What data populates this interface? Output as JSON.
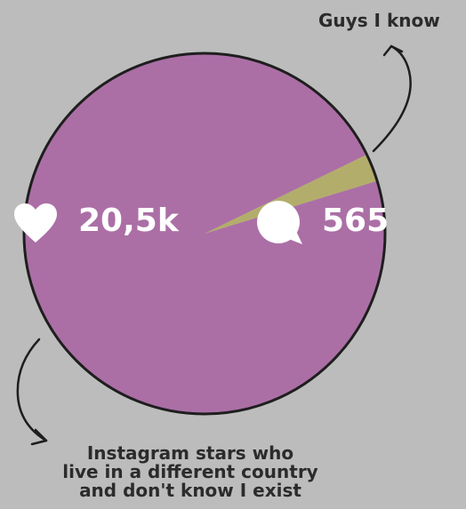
{
  "chart_data": {
    "type": "pie",
    "slices": [
      {
        "label": "Instagram stars who live in a different country and don't know I exist",
        "value": 97.5,
        "color": "#ab6fa6"
      },
      {
        "label": "Guys I know",
        "value": 2.5,
        "color": "#b3ad6c"
      }
    ],
    "annotations": {
      "small_slice": "Guys I know",
      "large_slice_lines": [
        "Instagram stars who",
        "live in a different country",
        "and don't know I exist"
      ]
    }
  },
  "overlay": {
    "likes": "20,5k",
    "comments": "565",
    "likes_icon": "heart-icon",
    "comments_icon": "speech-bubble-icon",
    "text_color": "#ffffff"
  },
  "colors": {
    "background": "#bcbcbc",
    "outline": "#1e1e1e"
  }
}
